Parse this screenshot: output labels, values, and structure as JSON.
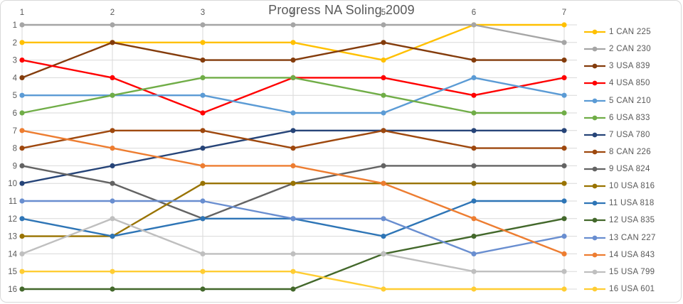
{
  "title": "Progress NA Soling 2009",
  "chart_data": {
    "type": "line",
    "title": "Progress NA Soling 2009",
    "xlabel": "",
    "ylabel": "",
    "x": [
      1,
      2,
      3,
      4,
      5,
      6,
      7
    ],
    "x_labels": [
      "1",
      "2",
      "3",
      "4",
      "5",
      "6",
      "7"
    ],
    "y_labels": [
      "1",
      "2",
      "3",
      "4",
      "5",
      "6",
      "7",
      "8",
      "9",
      "10",
      "11",
      "12",
      "13",
      "14",
      "15",
      "16"
    ],
    "y_axis": {
      "min": 1,
      "max": 16,
      "inverted": true,
      "meaning": "overall position after each race"
    },
    "grid": true,
    "legend_position": "right",
    "series": [
      {
        "name": "1 CAN 225",
        "color": "#FFC000",
        "values": [
          2,
          2,
          2,
          2,
          3,
          1,
          1
        ]
      },
      {
        "name": "2 CAN 230",
        "color": "#A5A5A5",
        "values": [
          1,
          1,
          1,
          1,
          1,
          1,
          2
        ]
      },
      {
        "name": "3 USA 839",
        "color": "#843C0C",
        "values": [
          4,
          2,
          3,
          3,
          2,
          3,
          3
        ]
      },
      {
        "name": "4 USA 850",
        "color": "#FF0000",
        "values": [
          3,
          4,
          6,
          4,
          4,
          5,
          4
        ]
      },
      {
        "name": "5 CAN 210",
        "color": "#5B9BD5",
        "values": [
          5,
          5,
          5,
          6,
          6,
          4,
          5
        ]
      },
      {
        "name": "6 USA 833",
        "color": "#70AD47",
        "values": [
          6,
          5,
          4,
          4,
          5,
          6,
          6
        ]
      },
      {
        "name": "7 USA 780",
        "color": "#264478",
        "values": [
          10,
          9,
          8,
          7,
          7,
          7,
          7
        ]
      },
      {
        "name": "8 CAN 226",
        "color": "#9E480E",
        "values": [
          8,
          7,
          7,
          8,
          7,
          8,
          8
        ]
      },
      {
        "name": "9 USA 824",
        "color": "#636363",
        "values": [
          9,
          10,
          12,
          10,
          9,
          9,
          9
        ]
      },
      {
        "name": "10 USA 816",
        "color": "#997300",
        "values": [
          13,
          13,
          10,
          10,
          10,
          10,
          10
        ]
      },
      {
        "name": "11 USA 818",
        "color": "#2E75B6",
        "values": [
          12,
          13,
          12,
          12,
          13,
          11,
          11
        ]
      },
      {
        "name": "12 USA 835",
        "color": "#43682B",
        "values": [
          16,
          16,
          16,
          16,
          14,
          13,
          12
        ]
      },
      {
        "name": "13 CAN 227",
        "color": "#698ED0",
        "values": [
          11,
          11,
          11,
          12,
          12,
          14,
          13
        ]
      },
      {
        "name": "14 USA 843",
        "color": "#ED7D31",
        "values": [
          7,
          8,
          9,
          9,
          10,
          12,
          14
        ]
      },
      {
        "name": "15 USA 799",
        "color": "#BFBFBF",
        "values": [
          14,
          12,
          14,
          14,
          14,
          15,
          15
        ]
      },
      {
        "name": "16 USA 601",
        "color": "#FFCD33",
        "values": [
          15,
          15,
          15,
          15,
          16,
          16,
          16
        ]
      }
    ]
  },
  "colors": {
    "grid": "#D9D9D9",
    "frame_border": "#D9D9D9",
    "axis_text": "#595959",
    "title_text": "#595959",
    "legend_text": "#595959",
    "background": "#FFFFFF"
  }
}
